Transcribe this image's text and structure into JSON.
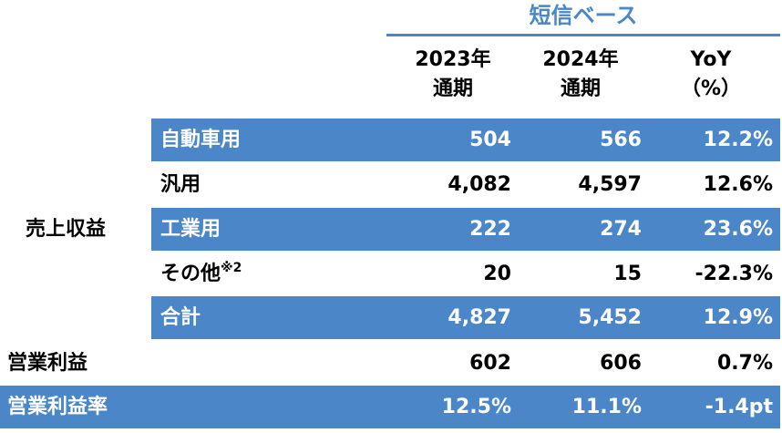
{
  "header": {
    "basis": "短信ベース",
    "columns": [
      {
        "line1": "2023年",
        "line2": "通期"
      },
      {
        "line1": "2024年",
        "line2": "通期"
      },
      {
        "line1": "YoY",
        "line2": "（%）"
      }
    ]
  },
  "revenue_group_label": "売上収益",
  "rows": [
    {
      "label": "自動車用",
      "note": "",
      "values": [
        "504",
        "566",
        "12.2%"
      ]
    },
    {
      "label": "汎用",
      "note": "",
      "values": [
        "4,082",
        "4,597",
        "12.6%"
      ]
    },
    {
      "label": "工業用",
      "note": "",
      "values": [
        "222",
        "274",
        "23.6%"
      ]
    },
    {
      "label": "その他",
      "note": "※2",
      "values": [
        "20",
        "15",
        "-22.3%"
      ]
    },
    {
      "label": "合計",
      "note": "",
      "values": [
        "4,827",
        "5,452",
        "12.9%"
      ]
    },
    {
      "label": "営業利益",
      "note": "",
      "values": [
        "602",
        "606",
        "0.7%"
      ]
    },
    {
      "label": "営業利益率",
      "note": "",
      "values": [
        "12.5%",
        "11.1%",
        "-1.4pt"
      ]
    }
  ],
  "colors": {
    "band": "#4a86c8",
    "band_text": "#ffffff"
  }
}
